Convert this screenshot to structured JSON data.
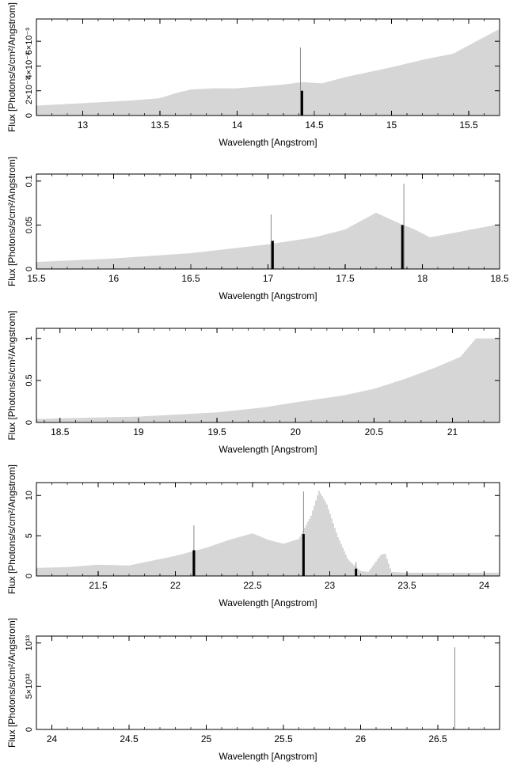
{
  "chart_data": [
    {
      "type": "bar",
      "xlabel": "Wavelength [Angstrom]",
      "ylabel": "Flux [Photons/s/cm²/Angstrom]",
      "xlim": [
        12.7,
        15.7
      ],
      "ylim": [
        0,
        0.0078
      ],
      "x_ticks": [
        13,
        13.5,
        14,
        14.5,
        15,
        15.5
      ],
      "x_tick_labels": [
        "13",
        "13.5",
        "14",
        "14.5",
        "15",
        "15.5"
      ],
      "y_ticks": [
        0,
        0.002,
        0.004,
        0.006
      ],
      "y_tick_labels": [
        "0",
        "2×10⁻³",
        "4×10⁻³",
        "6×10⁻³"
      ],
      "continuum": [
        [
          12.7,
          0.0008
        ],
        [
          13.0,
          0.001
        ],
        [
          13.3,
          0.0012
        ],
        [
          13.5,
          0.0014
        ],
        [
          13.6,
          0.0018
        ],
        [
          13.7,
          0.0021
        ],
        [
          13.85,
          0.0022
        ],
        [
          14.0,
          0.0022
        ],
        [
          14.3,
          0.0025
        ],
        [
          14.42,
          0.0027
        ],
        [
          14.55,
          0.0026
        ],
        [
          14.7,
          0.0031
        ],
        [
          15.0,
          0.0039
        ],
        [
          15.2,
          0.0045
        ],
        [
          15.4,
          0.005
        ],
        [
          15.7,
          0.007
        ]
      ],
      "lines": [
        {
          "x": 14.41,
          "y": 0.0055
        },
        {
          "x": 14.42,
          "y": 0.002
        }
      ]
    },
    {
      "type": "bar",
      "xlabel": "Wavelength [Angstrom]",
      "ylabel": "Flux [Photons/s/cm²/Angstrom]",
      "xlim": [
        15.5,
        18.5
      ],
      "ylim": [
        0,
        0.108
      ],
      "x_ticks": [
        15.5,
        16,
        16.5,
        17,
        17.5,
        18,
        18.5
      ],
      "x_tick_labels": [
        "15.5",
        "16",
        "16.5",
        "17",
        "17.5",
        "18",
        "18.5"
      ],
      "y_ticks": [
        0,
        0.05,
        0.1
      ],
      "y_tick_labels": [
        "0",
        "0.05",
        "0.1"
      ],
      "continuum": [
        [
          15.5,
          0.008
        ],
        [
          16.0,
          0.012
        ],
        [
          16.5,
          0.018
        ],
        [
          17.0,
          0.028
        ],
        [
          17.3,
          0.036
        ],
        [
          17.5,
          0.045
        ],
        [
          17.7,
          0.064
        ],
        [
          17.85,
          0.052
        ],
        [
          17.95,
          0.045
        ],
        [
          18.05,
          0.036
        ],
        [
          18.2,
          0.041
        ],
        [
          18.5,
          0.051
        ]
      ],
      "lines": [
        {
          "x": 17.02,
          "y": 0.062
        },
        {
          "x": 17.03,
          "y": 0.032
        },
        {
          "x": 17.88,
          "y": 0.097
        },
        {
          "x": 17.87,
          "y": 0.05
        }
      ]
    },
    {
      "type": "bar",
      "xlabel": "Wavelength [Angstrom]",
      "ylabel": "Flux [Photons/s/cm²/Angstrom]",
      "xlim": [
        18.35,
        21.3
      ],
      "ylim": [
        0,
        1.12
      ],
      "x_ticks": [
        18.5,
        19,
        19.5,
        20,
        20.5,
        21
      ],
      "x_tick_labels": [
        "18.5",
        "19",
        "19.5",
        "20",
        "20.5",
        "21"
      ],
      "y_ticks": [
        0,
        0.5,
        1
      ],
      "y_tick_labels": [
        "0",
        "0.5",
        "1"
      ],
      "continuum": [
        [
          18.35,
          0.04
        ],
        [
          18.5,
          0.05
        ],
        [
          19.0,
          0.07
        ],
        [
          19.5,
          0.12
        ],
        [
          19.8,
          0.18
        ],
        [
          20.0,
          0.24
        ],
        [
          20.3,
          0.32
        ],
        [
          20.5,
          0.4
        ],
        [
          20.7,
          0.52
        ],
        [
          20.9,
          0.66
        ],
        [
          21.05,
          0.78
        ],
        [
          21.15,
          1.0
        ],
        [
          21.3,
          1.0
        ]
      ],
      "lines": []
    },
    {
      "type": "bar",
      "xlabel": "Wavelength [Angstrom]",
      "ylabel": "Flux [Photons/s/cm²/Angstrom]",
      "xlim": [
        21.1,
        24.1
      ],
      "ylim": [
        0,
        11.6
      ],
      "x_ticks": [
        21.5,
        22,
        22.5,
        23,
        23.5,
        24
      ],
      "x_tick_labels": [
        "21.5",
        "22",
        "22.5",
        "23",
        "23.5",
        "24"
      ],
      "y_ticks": [
        0,
        5,
        10
      ],
      "y_tick_labels": [
        "0",
        "5",
        "10"
      ],
      "continuum": [
        [
          21.1,
          1.0
        ],
        [
          21.3,
          1.1
        ],
        [
          21.5,
          1.4
        ],
        [
          21.7,
          1.3
        ],
        [
          22.0,
          2.5
        ],
        [
          22.2,
          3.5
        ],
        [
          22.35,
          4.5
        ],
        [
          22.5,
          5.3
        ],
        [
          22.6,
          4.5
        ],
        [
          22.7,
          4.0
        ],
        [
          22.8,
          4.6
        ],
        [
          22.88,
          7.5
        ],
        [
          22.93,
          10.6
        ],
        [
          22.98,
          9.0
        ],
        [
          23.05,
          5.0
        ],
        [
          23.12,
          2.0
        ],
        [
          23.2,
          0.6
        ],
        [
          23.25,
          0.5
        ],
        [
          23.33,
          2.6
        ],
        [
          23.36,
          2.8
        ],
        [
          23.4,
          0.5
        ],
        [
          23.5,
          0.4
        ],
        [
          24.1,
          0.4
        ]
      ],
      "lines": [
        {
          "x": 22.12,
          "y": 6.3
        },
        {
          "x": 22.12,
          "y": 3.2
        },
        {
          "x": 22.83,
          "y": 10.5
        },
        {
          "x": 22.83,
          "y": 5.2
        },
        {
          "x": 23.17,
          "y": 1.7
        },
        {
          "x": 23.17,
          "y": 0.9
        }
      ]
    },
    {
      "type": "bar",
      "xlabel": "Wavelength [Angstrom]",
      "ylabel": "Flux [Photons/s/cm²/Angstrom]",
      "xlim": [
        23.9,
        26.9
      ],
      "ylim": [
        0,
        10800000000000
      ],
      "x_ticks": [
        24,
        24.5,
        25,
        25.5,
        26,
        26.5
      ],
      "x_tick_labels": [
        "24",
        "24.5",
        "25",
        "25.5",
        "26",
        "26.5"
      ],
      "y_ticks": [
        0,
        5000000000000,
        10000000000000
      ],
      "y_tick_labels": [
        "0",
        "5×10¹²",
        "10¹³"
      ],
      "continuum": [],
      "lines": [
        {
          "x": 26.61,
          "y": 9500000000000
        }
      ]
    }
  ]
}
